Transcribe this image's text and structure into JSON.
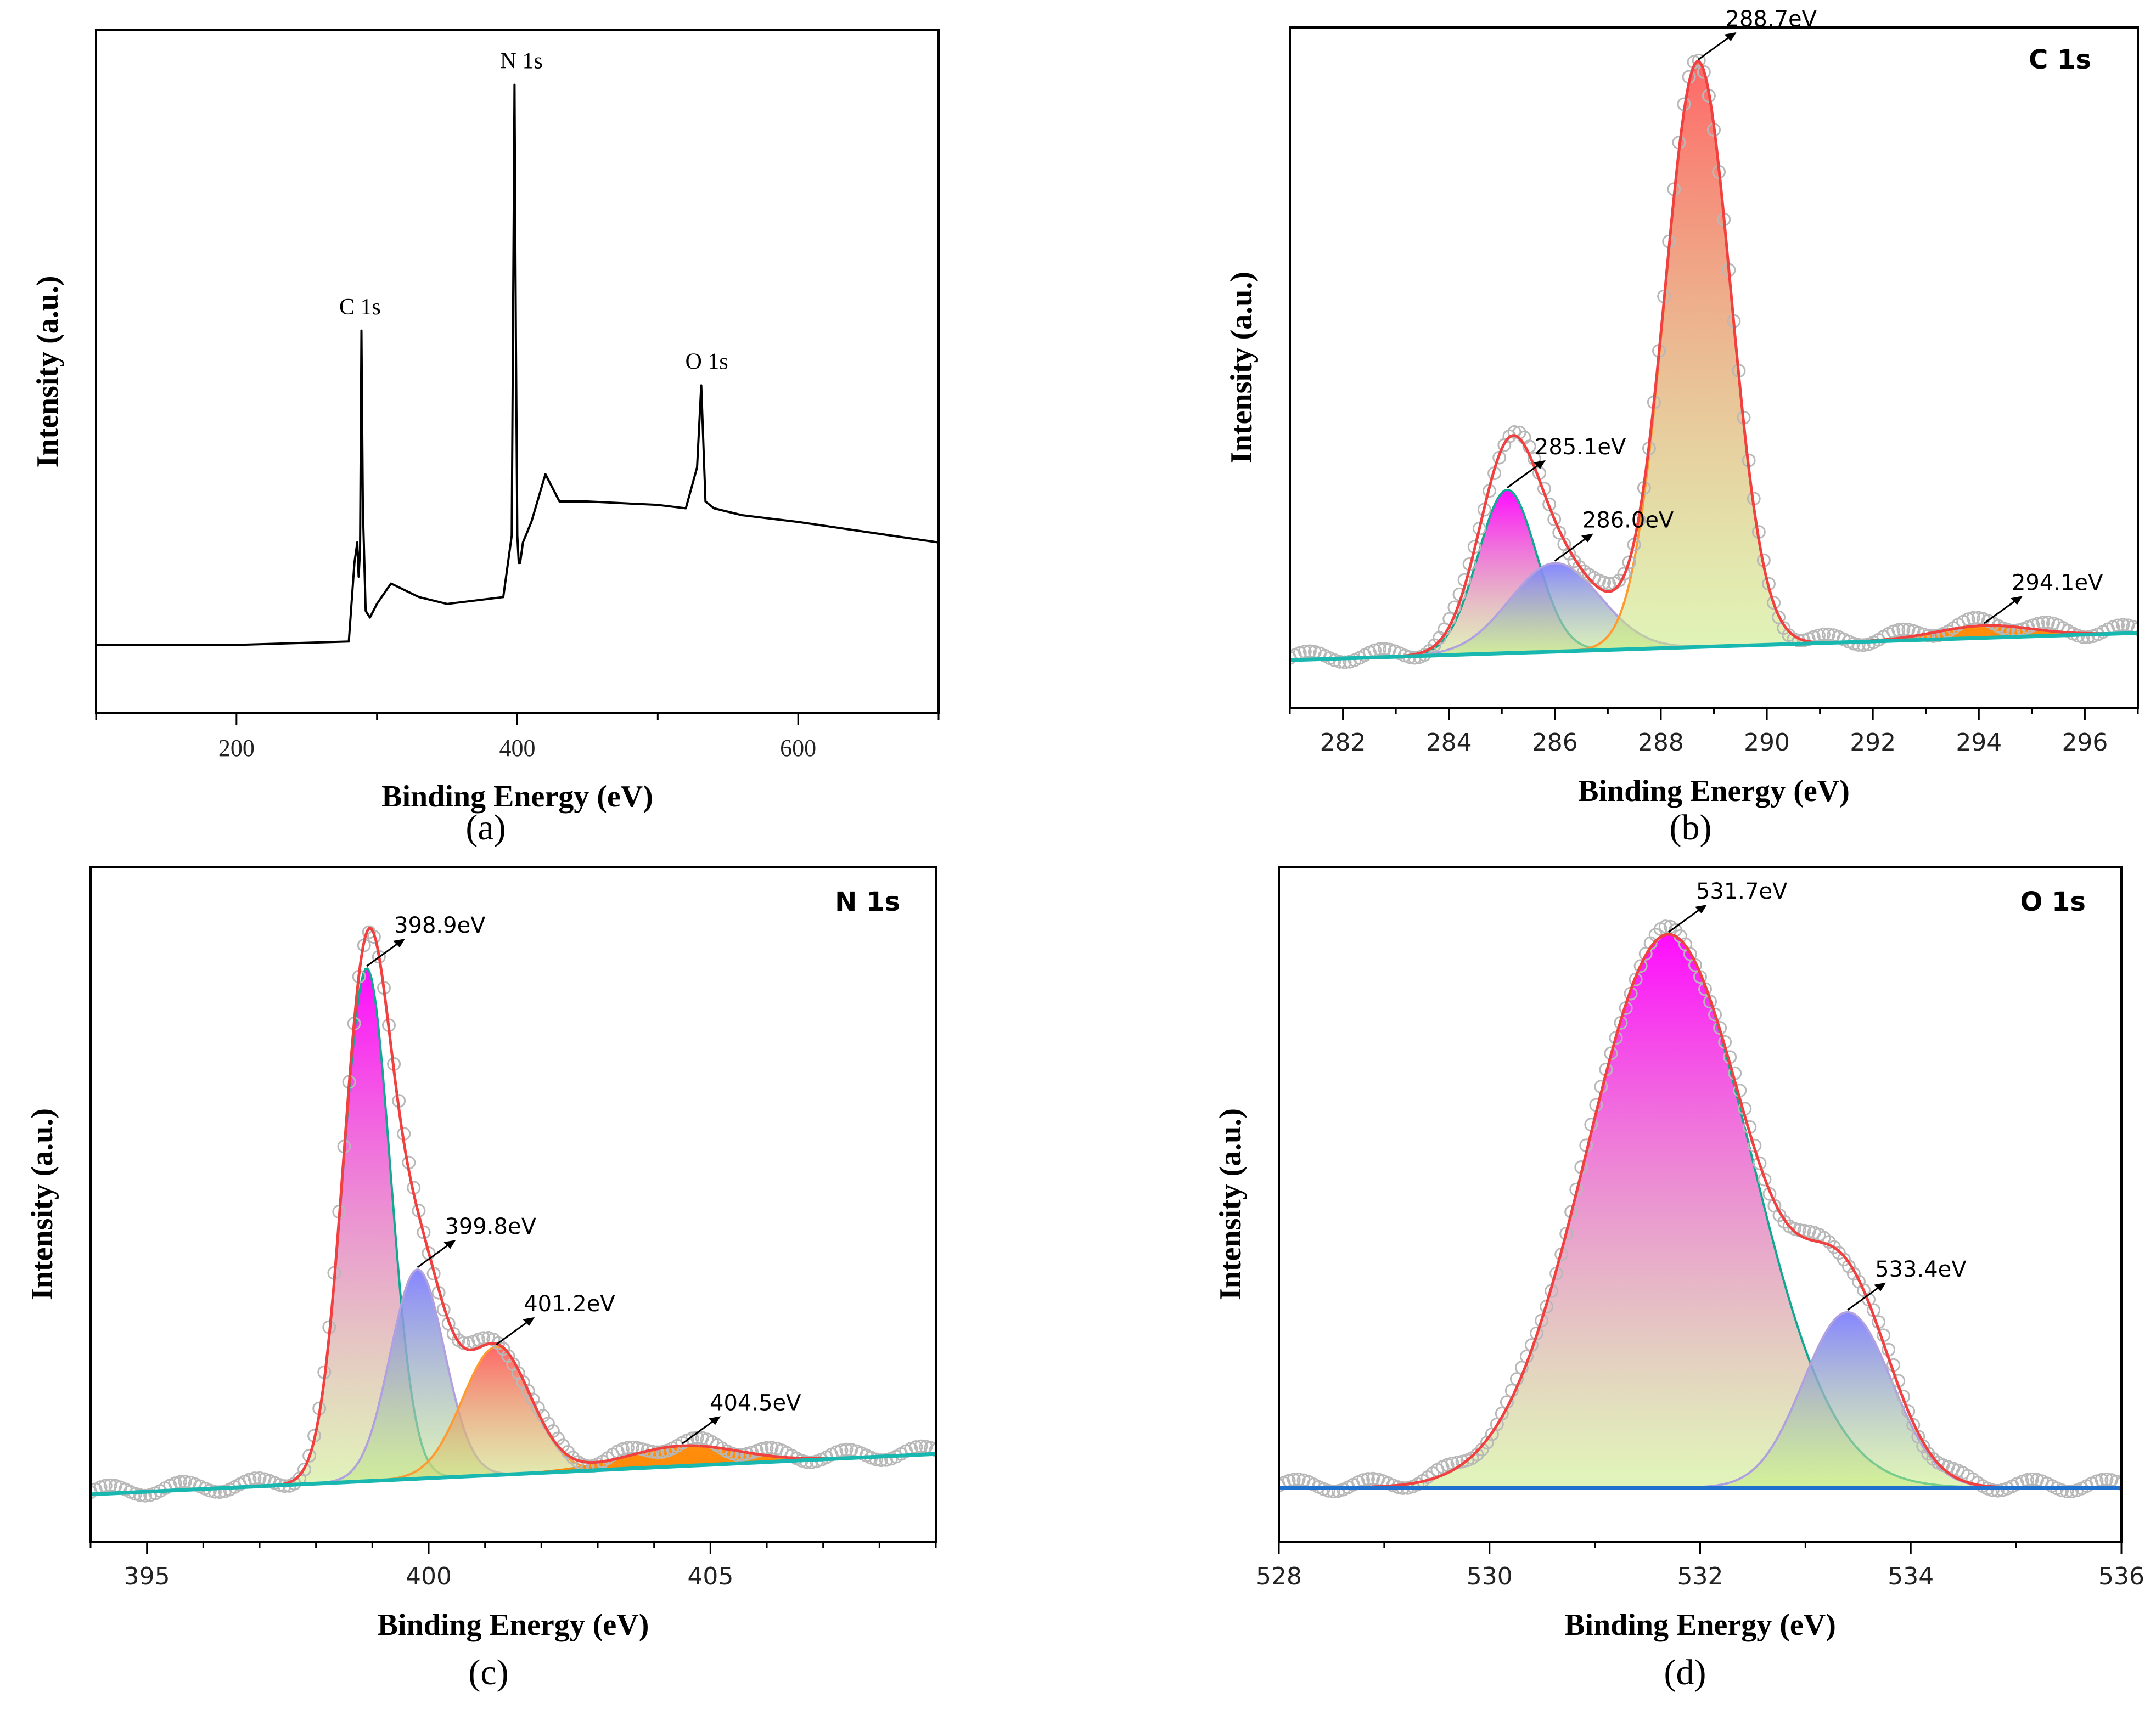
{
  "figure": {
    "panels": [
      {
        "id": "a",
        "caption": "(a)",
        "panel_label": "",
        "ylabel": "Intensity (a.u.)",
        "xlabel": "Binding Energy (eV)"
      },
      {
        "id": "b",
        "caption": "(b)",
        "panel_label": "C 1s",
        "ylabel": "Intensity (a.u.)",
        "xlabel": "Binding Energy (eV)"
      },
      {
        "id": "c",
        "caption": "(c)",
        "panel_label": "N 1s",
        "ylabel": "Intensity (a.u.)",
        "xlabel": "Binding Energy (eV)"
      },
      {
        "id": "d",
        "caption": "(d)",
        "panel_label": "O 1s",
        "ylabel": "Intensity (a.u.)",
        "xlabel": "Binding Energy (eV)"
      }
    ]
  },
  "colors": {
    "axis": "#000000",
    "raw_data": "#b8b8b8",
    "envelope": "#f04040",
    "background": "#18b8b0",
    "peak_magenta": "#ff00ff",
    "peak_blue": "#8080ff",
    "peak_red": "#ff6060",
    "peak_orange": "#ff8800",
    "peak_base": "#c8ee80"
  },
  "chart_data": [
    {
      "id": "a",
      "type": "line",
      "title": "",
      "xlabel": "Binding Energy (eV)",
      "ylabel": "Intensity (a.u.)",
      "xlim": [
        100,
        700
      ],
      "ylim": [
        0,
        100
      ],
      "xticks": [
        200,
        400,
        600
      ],
      "series": [
        {
          "name": "Survey spectrum",
          "x": [
            100,
            200,
            280,
            284,
            286,
            287,
            288,
            289,
            290,
            292,
            295,
            300,
            310,
            320,
            330,
            350,
            390,
            396,
            398,
            399,
            400,
            401,
            402,
            404,
            410,
            420,
            425,
            430,
            450,
            500,
            520,
            528,
            531,
            534,
            540,
            560,
            600,
            650,
            700
          ],
          "y": [
            10,
            10,
            10.5,
            22,
            25,
            20,
            24,
            56,
            30,
            15,
            14,
            16,
            19,
            18,
            17,
            16,
            17,
            26,
            92,
            55,
            26,
            22,
            22,
            25,
            28,
            35,
            33,
            31,
            31,
            30.5,
            30,
            36,
            48,
            31,
            30,
            29,
            28,
            26.5,
            25
          ]
        }
      ],
      "annotations": [
        {
          "text": "C 1s",
          "x": 288,
          "y": 56
        },
        {
          "text": "N 1s",
          "x": 399,
          "y": 92
        },
        {
          "text": "O 1s",
          "x": 531,
          "y": 48
        }
      ]
    },
    {
      "id": "b",
      "type": "line",
      "title": "C 1s",
      "xlabel": "Binding Energy (eV)",
      "ylabel": "Intensity (a.u.)",
      "xlim": [
        281,
        297
      ],
      "ylim": [
        0,
        100
      ],
      "xticks": [
        282,
        284,
        286,
        288,
        290,
        292,
        294,
        296
      ],
      "baseline": [
        [
          281,
          7
        ],
        [
          297,
          11
        ]
      ],
      "peaks": [
        {
          "center": 285.1,
          "height": 24,
          "width": 0.55,
          "label": "285.1eV",
          "color": "#ff00ff"
        },
        {
          "center": 286.0,
          "height": 13,
          "width": 0.85,
          "label": "286.0eV",
          "color": "#8080ff"
        },
        {
          "center": 288.7,
          "height": 86,
          "width": 0.62,
          "label": "288.7eV",
          "color": "#ff6060"
        },
        {
          "center": 294.1,
          "height": 1.8,
          "width": 0.9,
          "label": "294.1eV",
          "color": "#ff8800"
        }
      ],
      "series": [
        {
          "name": "Raw data",
          "style": "open-circles"
        },
        {
          "name": "Envelope",
          "style": "line"
        },
        {
          "name": "Background",
          "style": "line"
        }
      ]
    },
    {
      "id": "c",
      "type": "line",
      "title": "N 1s",
      "xlabel": "Binding Energy (eV)",
      "ylabel": "Intensity (a.u.)",
      "xlim": [
        394,
        409
      ],
      "ylim": [
        0,
        100
      ],
      "xticks": [
        395,
        400,
        405
      ],
      "baseline": [
        [
          394,
          7
        ],
        [
          409,
          13
        ]
      ],
      "peaks": [
        {
          "center": 398.9,
          "height": 76,
          "width": 0.42,
          "label": "398.9eV",
          "color": "#ff00ff"
        },
        {
          "center": 399.8,
          "height": 31,
          "width": 0.48,
          "label": "399.8eV",
          "color": "#8080ff"
        },
        {
          "center": 401.2,
          "height": 19,
          "width": 0.6,
          "label": "401.2eV",
          "color": "#ff6060"
        },
        {
          "center": 404.5,
          "height": 3,
          "width": 1.0,
          "label": "404.5eV",
          "color": "#ff8800"
        }
      ],
      "series": [
        {
          "name": "Raw data",
          "style": "open-circles"
        },
        {
          "name": "Envelope",
          "style": "line"
        },
        {
          "name": "Background",
          "style": "line"
        }
      ]
    },
    {
      "id": "d",
      "type": "line",
      "title": "O 1s",
      "xlabel": "Binding Energy (eV)",
      "ylabel": "Intensity (a.u.)",
      "xlim": [
        528,
        536
      ],
      "ylim": [
        0,
        100
      ],
      "xticks": [
        528,
        530,
        532,
        534,
        536
      ],
      "baseline": [
        [
          528,
          8
        ],
        [
          536,
          8
        ]
      ],
      "peaks": [
        {
          "center": 531.7,
          "height": 82,
          "width": 0.78,
          "label": "531.7eV",
          "color": "#ff00ff"
        },
        {
          "center": 533.4,
          "height": 26,
          "width": 0.42,
          "label": "533.4eV",
          "color": "#8080ff"
        }
      ],
      "series": [
        {
          "name": "Raw data",
          "style": "open-circles"
        },
        {
          "name": "Envelope",
          "style": "line"
        },
        {
          "name": "Background",
          "style": "line"
        }
      ]
    }
  ]
}
